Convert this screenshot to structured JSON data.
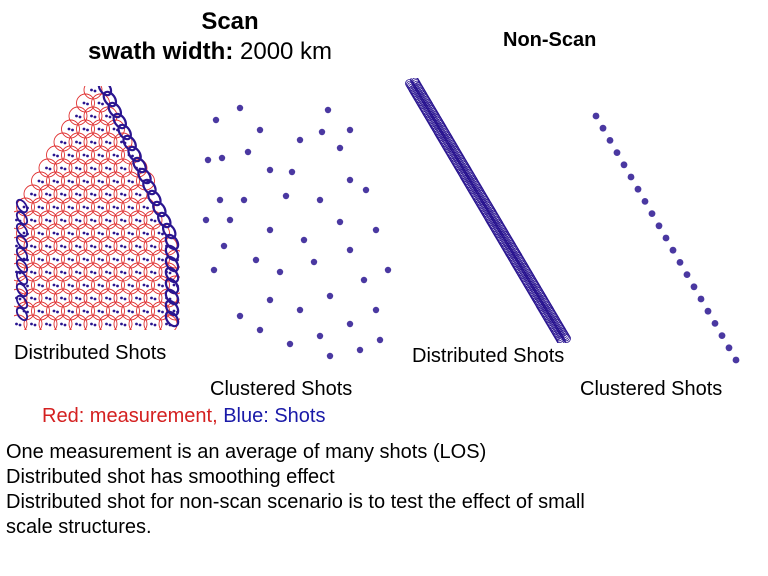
{
  "scan": {
    "title": "Scan",
    "swath_label": "swath width:",
    "swath_value": "2000 km"
  },
  "nonscan": {
    "title": "Non-Scan"
  },
  "panels": {
    "scan_distributed_label": "Distributed Shots",
    "scan_clustered_label": "Clustered Shots",
    "nonscan_distributed_label": "Distributed Shots",
    "nonscan_clustered_label": "Clustered Shots"
  },
  "legend": {
    "red_text": "Red: measurement,",
    "blue_text": "Blue: Shots",
    "red_color": "#d42020",
    "blue_color": "#1a1aa8"
  },
  "notes": [
    "One measurement is an average of many shots (LOS)",
    "Distributed shot has smoothing effect",
    "Distributed shot for non-scan scenario is to test the effect of small",
    "scale structures."
  ],
  "colors": {
    "shot": "#2a1590",
    "measurement": "#e03030"
  }
}
